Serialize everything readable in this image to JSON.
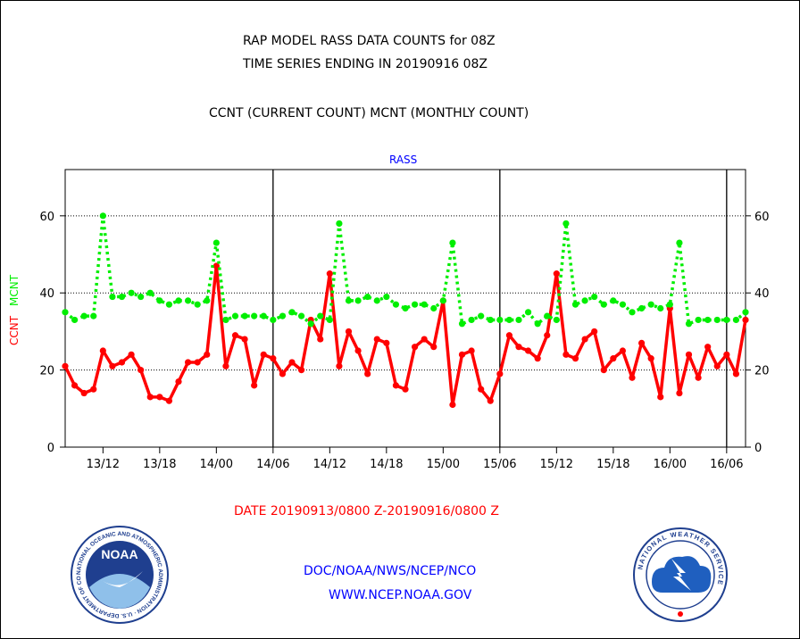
{
  "header": {
    "title_line1": "RAP MODEL RASS DATA COUNTS for 08Z",
    "title_line2": "TIME SERIES ENDING IN 20190916 08Z",
    "subtitle": "CCNT (CURRENT COUNT) MCNT (MONTHLY COUNT)"
  },
  "footer": {
    "date_range": "DATE 20190913/0800 Z-20190916/0800 Z",
    "org_line": "DOC/NOAA/NWS/NCEP/NCO",
    "url": "WWW.NCEP.NOAA.GOV"
  },
  "logos": {
    "noaa_center": "NOAA",
    "noaa_ring": "NATIONAL OCEANIC AND ATMOSPHERIC ADMINISTRATION · U.S. DEPARTMENT OF COMMERCE ·",
    "nws_ring": "NATIONAL WEATHER SERVICE"
  },
  "colors": {
    "ccnt": "#ff0000",
    "mcnt": "#00ee00",
    "label_blue": "#0000ff",
    "axis": "#000000"
  },
  "chart_data": {
    "type": "line",
    "title": "RASS",
    "ylabel_left": {
      "ccnt": "CCNT",
      "mcnt": "MCNT"
    },
    "ylim": [
      0,
      72
    ],
    "yticks": [
      0,
      20,
      40,
      60
    ],
    "grid": "horizontal dotted",
    "x_range_hours": [
      0,
      72
    ],
    "x_ticks": [
      {
        "hour": 4,
        "label": "13/12"
      },
      {
        "hour": 10,
        "label": "13/18"
      },
      {
        "hour": 16,
        "label": "14/00"
      },
      {
        "hour": 22,
        "label": "14/06"
      },
      {
        "hour": 28,
        "label": "14/12"
      },
      {
        "hour": 34,
        "label": "14/18"
      },
      {
        "hour": 40,
        "label": "15/00"
      },
      {
        "hour": 46,
        "label": "15/06"
      },
      {
        "hour": 52,
        "label": "15/12"
      },
      {
        "hour": 58,
        "label": "15/18"
      },
      {
        "hour": 64,
        "label": "16/00"
      },
      {
        "hour": 70,
        "label": "16/06"
      }
    ],
    "day_boundaries_hours": [
      22,
      46,
      70
    ],
    "series": [
      {
        "name": "CCNT",
        "key": "ccnt",
        "style": "solid",
        "values": [
          21,
          16,
          14,
          15,
          25,
          21,
          22,
          24,
          20,
          13,
          13,
          12,
          17,
          22,
          22,
          24,
          47,
          21,
          29,
          28,
          16,
          24,
          23,
          19,
          22,
          20,
          33,
          28,
          45,
          21,
          30,
          25,
          19,
          28,
          27,
          16,
          15,
          26,
          28,
          26,
          38,
          11,
          24,
          25,
          15,
          12,
          19,
          29,
          26,
          25,
          23,
          29,
          45,
          24,
          23,
          28,
          30,
          20,
          23,
          25,
          18,
          27,
          23,
          13,
          36,
          14,
          24,
          18,
          26,
          21,
          24,
          19,
          33
        ]
      },
      {
        "name": "MCNT",
        "key": "mcnt",
        "style": "dotted",
        "values": [
          35,
          33,
          34,
          34,
          60,
          39,
          39,
          40,
          39,
          40,
          38,
          37,
          38,
          38,
          37,
          38,
          53,
          33,
          34,
          34,
          34,
          34,
          33,
          34,
          35,
          34,
          32,
          34,
          33,
          58,
          38,
          38,
          39,
          38,
          39,
          37,
          36,
          37,
          37,
          36,
          38,
          53,
          32,
          33,
          34,
          33,
          33,
          33,
          33,
          35,
          32,
          34,
          33,
          58,
          37,
          38,
          39,
          37,
          38,
          37,
          35,
          36,
          37,
          36,
          37,
          53,
          32,
          33,
          33,
          33,
          33,
          33,
          35
        ]
      }
    ]
  }
}
